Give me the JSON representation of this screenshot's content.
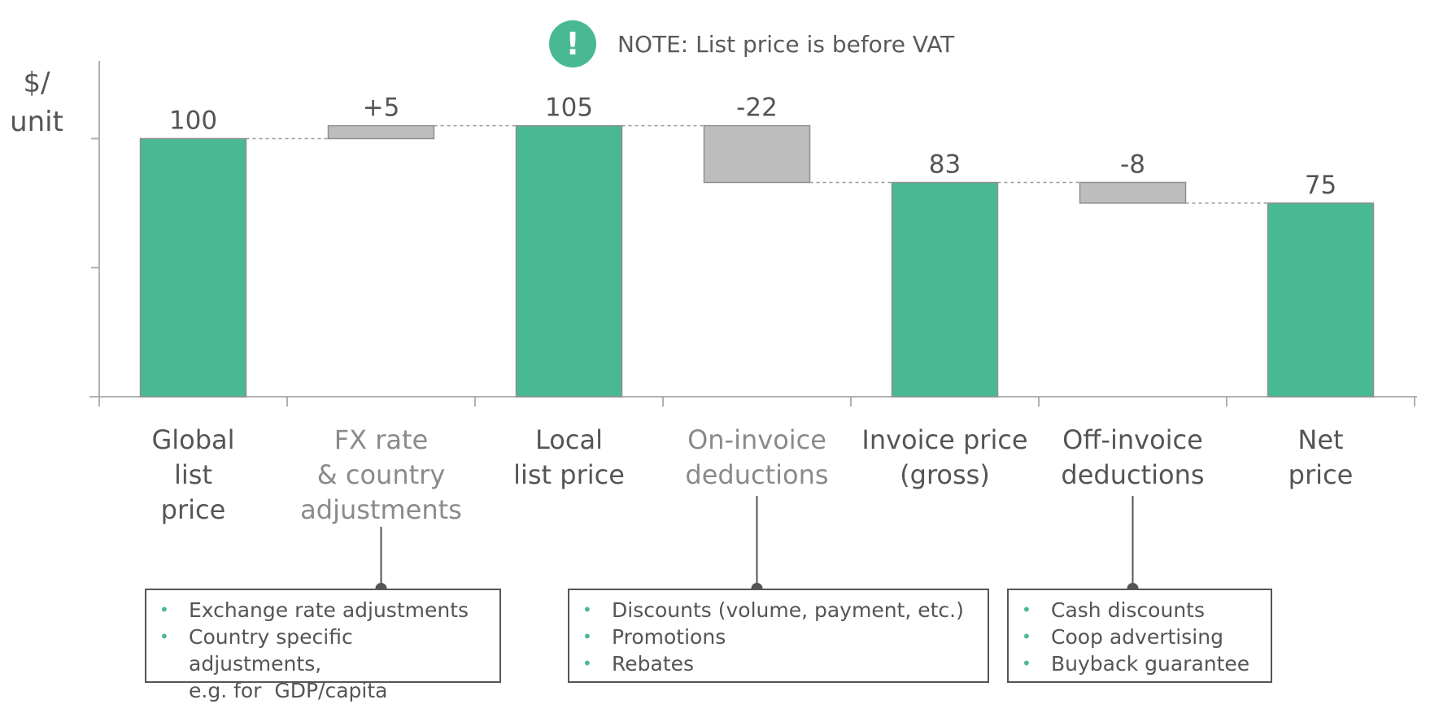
{
  "note": {
    "icon": "exclamation-icon",
    "icon_glyph": "!",
    "text": "NOTE: List price is before VAT"
  },
  "chart_data": {
    "type": "bar",
    "subtype": "waterfall",
    "ylabel": "$/ unit",
    "ylim": [
      0,
      110
    ],
    "categories": [
      "Global list price",
      "FX rate & country adjustments",
      "Local list price",
      "On-invoice deductions",
      "Invoice price (gross)",
      "Off-invoice deductions",
      "Net price"
    ],
    "category_lines": [
      [
        "Global",
        "list",
        "price"
      ],
      [
        "FX rate",
        "& country",
        "adjustments"
      ],
      [
        "Local",
        "list price"
      ],
      [
        "On-invoice",
        "deductions"
      ],
      [
        "Invoice price",
        "(gross)"
      ],
      [
        "Off-invoice",
        "deductions"
      ],
      [
        "Net",
        "price"
      ]
    ],
    "steps": [
      {
        "kind": "total",
        "value": 100,
        "label": "100"
      },
      {
        "kind": "delta",
        "value": 5,
        "label": "+5"
      },
      {
        "kind": "total",
        "value": 105,
        "label": "105"
      },
      {
        "kind": "delta",
        "value": -22,
        "label": "-22"
      },
      {
        "kind": "total",
        "value": 83,
        "label": "83"
      },
      {
        "kind": "delta",
        "value": -8,
        "label": "-8"
      },
      {
        "kind": "total",
        "value": 75,
        "label": "75"
      }
    ],
    "colors": {
      "total": "#49b993",
      "delta": "#bdbdbd",
      "axis": "#b0b0b0",
      "connector": "#9a9a9a"
    }
  },
  "callouts": [
    {
      "category_index": 1,
      "items": [
        "Exchange rate adjustments",
        "Country specific adjustments,",
        "e.g. for  GDP/capita"
      ],
      "bullets": [
        true,
        true,
        false
      ]
    },
    {
      "category_index": 3,
      "items": [
        "Discounts (volume, payment, etc.)",
        "Promotions",
        "Rebates"
      ],
      "bullets": [
        true,
        true,
        true
      ]
    },
    {
      "category_index": 5,
      "items": [
        "Cash discounts",
        "Coop advertising",
        "Buyback guarantee"
      ],
      "bullets": [
        true,
        true,
        true
      ]
    }
  ]
}
